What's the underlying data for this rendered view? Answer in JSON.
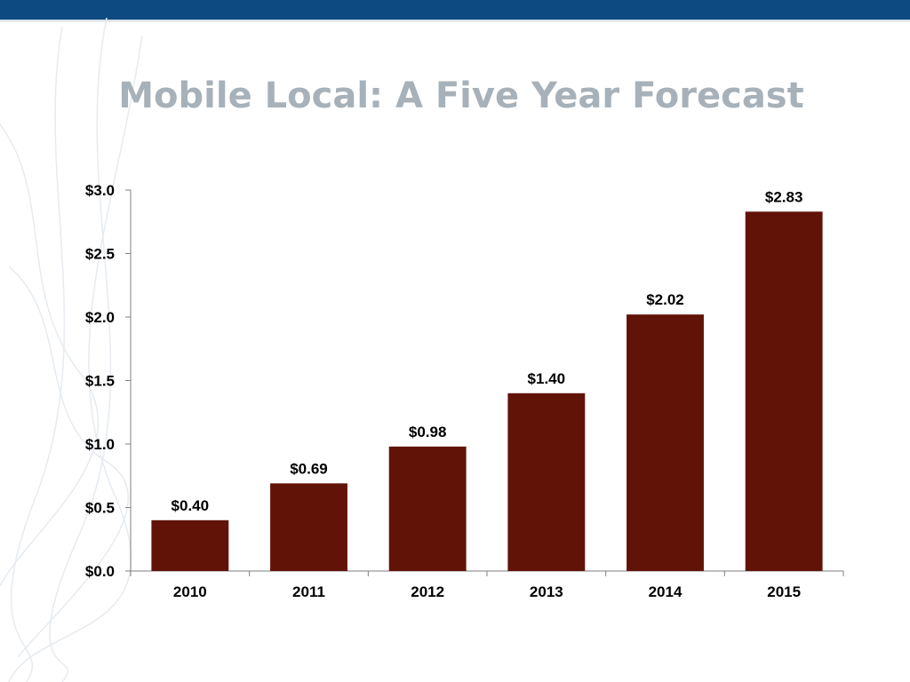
{
  "slide": {
    "title": "Mobile Local:  A Five Year Forecast"
  },
  "colors": {
    "top_bar": "#0d4a82",
    "title": "#a7b1b9",
    "bar": "#621307",
    "axis": "#7f7f7f"
  },
  "chart_data": {
    "type": "bar",
    "title": "",
    "xlabel": "",
    "ylabel": "",
    "categories": [
      "2010",
      "2011",
      "2012",
      "2013",
      "2014",
      "2015"
    ],
    "values": [
      0.4,
      0.69,
      0.98,
      1.4,
      2.02,
      2.83
    ],
    "data_labels": [
      "$0.40",
      "$0.69",
      "$0.98",
      "$1.40",
      "$2.02",
      "$2.83"
    ],
    "ylim": [
      0,
      3.0
    ],
    "yticks": [
      0,
      0.5,
      1.0,
      1.5,
      2.0,
      2.5,
      3.0
    ],
    "ytick_labels": [
      "$0.0",
      "$0.5",
      "$1.0",
      "$1.5",
      "$2.0",
      "$2.5",
      "$3.0"
    ],
    "grid": false,
    "legend": "none"
  }
}
